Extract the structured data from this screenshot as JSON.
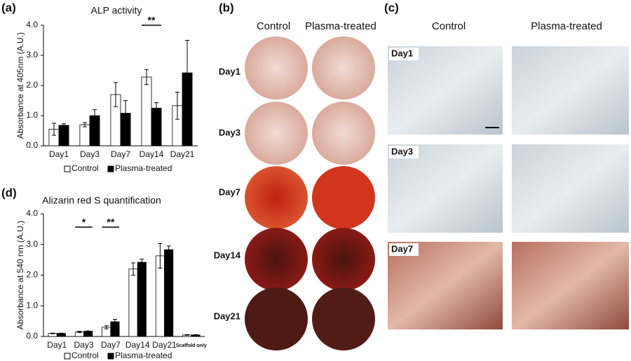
{
  "chart_data": [
    {
      "type": "bar",
      "panel": "(a)",
      "title": "ALP activity",
      "y_label": "Absorbance at 405nm (A.U.)",
      "categories": [
        "Day1",
        "Day3",
        "Day7",
        "Day14",
        "Day21"
      ],
      "series": [
        {
          "name": "Control",
          "color": "#ffffff",
          "values": [
            0.55,
            0.7,
            1.7,
            2.28,
            1.33
          ],
          "errors": [
            0.2,
            0.07,
            0.4,
            0.25,
            0.45
          ]
        },
        {
          "name": "Plasma-treated",
          "color": "#000000",
          "values": [
            0.68,
            1.0,
            1.08,
            1.25,
            2.42
          ],
          "errors": [
            0.05,
            0.2,
            0.42,
            0.18,
            1.08
          ]
        }
      ],
      "ylim": [
        0,
        4
      ],
      "yticks": [
        {
          "value": 0,
          "label": "0.0"
        },
        {
          "value": 1,
          "label": "1.0"
        },
        {
          "value": 2,
          "label": "2.0"
        },
        {
          "value": 3,
          "label": "3.0"
        },
        {
          "value": 4,
          "label": "4.0"
        }
      ],
      "annotations": [
        "**"
      ]
    },
    {
      "type": "bar",
      "panel": "(d)",
      "title": "Alizarin red S quantification",
      "y_label": "Absorbance at 540 nm (A.U.)",
      "categories": [
        "Day1",
        "Day3",
        "Day7",
        "Day14",
        "Day21",
        "Scaffold only"
      ],
      "series": [
        {
          "name": "Control",
          "color": "#ffffff",
          "values": [
            0.1,
            0.15,
            0.3,
            2.2,
            2.63,
            0.05
          ],
          "errors": [
            0.01,
            0.02,
            0.05,
            0.2,
            0.4,
            0.01
          ]
        },
        {
          "name": "Plasma-treated",
          "color": "#000000",
          "values": [
            0.1,
            0.17,
            0.48,
            2.42,
            2.83,
            0.05
          ],
          "errors": [
            0.01,
            0.01,
            0.08,
            0.1,
            0.12,
            0.01
          ]
        }
      ],
      "ylim": [
        0,
        4
      ],
      "yticks": [
        {
          "value": 0,
          "label": "0.0"
        },
        {
          "value": 1,
          "label": "1.0"
        },
        {
          "value": 2,
          "label": "2.0"
        },
        {
          "value": 3,
          "label": "3.0"
        },
        {
          "value": 4,
          "label": "4.0"
        }
      ],
      "annotations": [
        "*",
        "**"
      ]
    }
  ],
  "panel_b": {
    "label": "(b)",
    "columns": [
      "Control",
      "Plasma-treated"
    ],
    "rows": [
      "Day1",
      "Day3",
      "Day7",
      "Day14",
      "Day21"
    ]
  },
  "panel_c": {
    "label": "(c)",
    "columns": [
      "Control",
      "Plasma-treated"
    ],
    "rows": [
      "Day1",
      "Day3",
      "Day7"
    ]
  }
}
